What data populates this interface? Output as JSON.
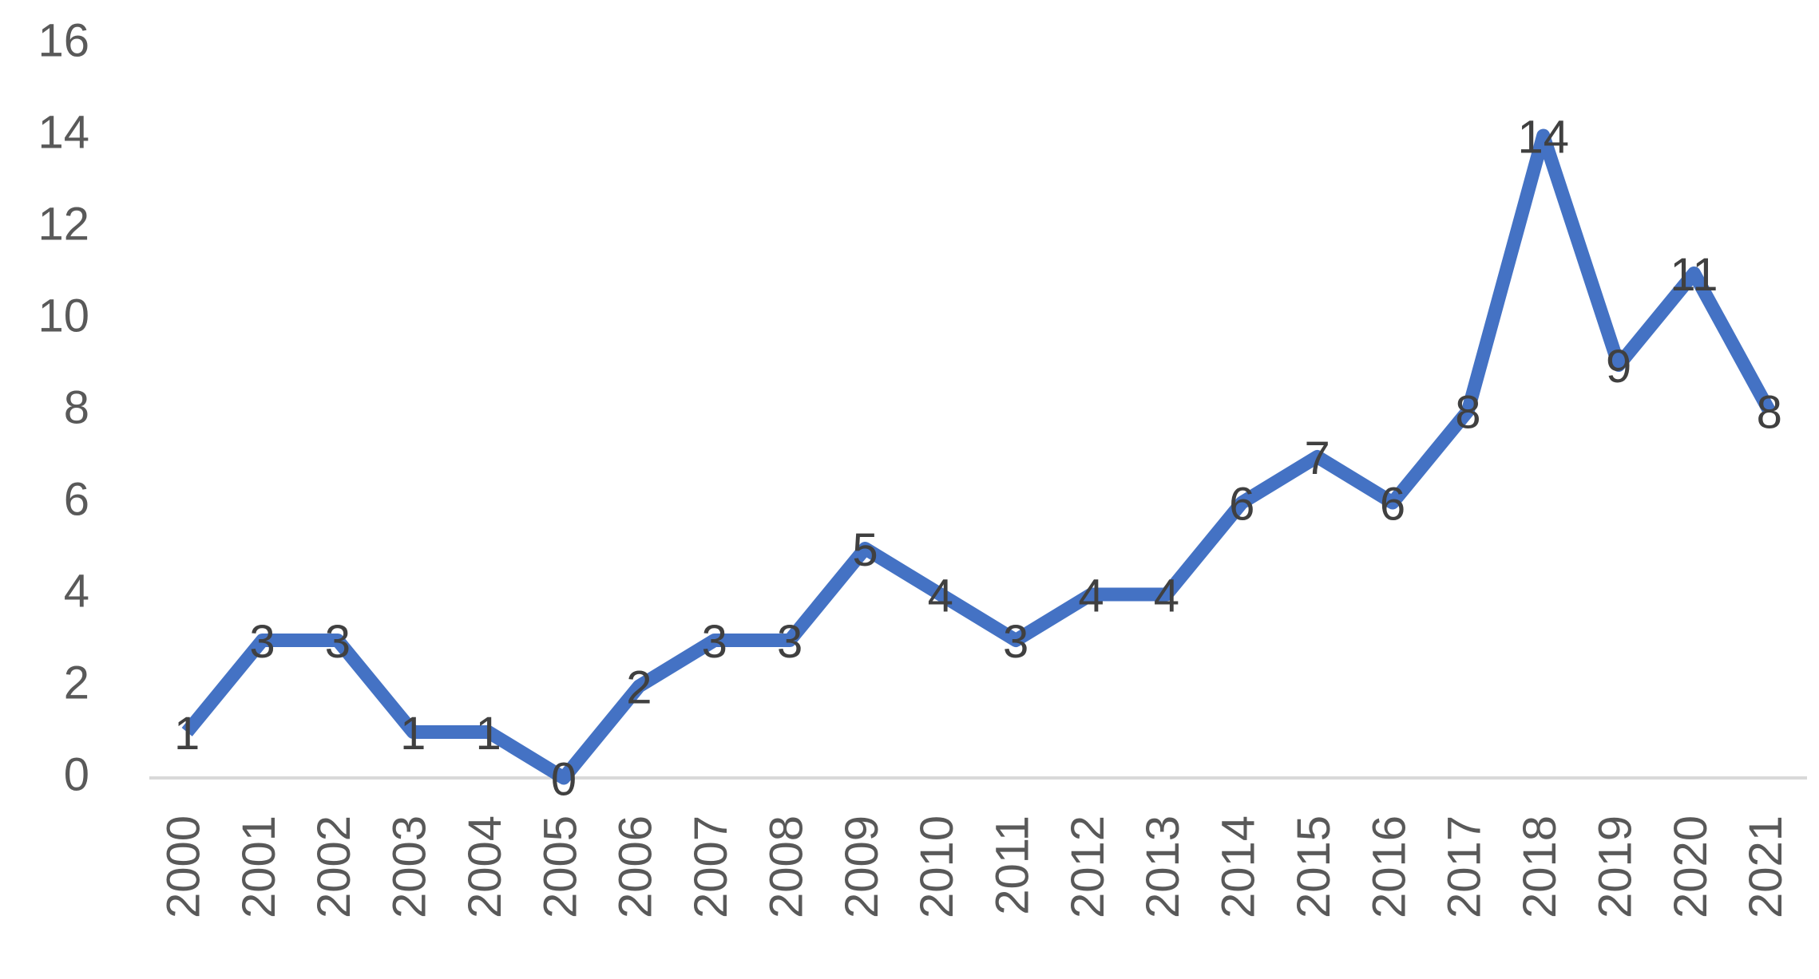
{
  "chart_data": {
    "type": "line",
    "categories": [
      "2000",
      "2001",
      "2002",
      "2003",
      "2004",
      "2005",
      "2006",
      "2007",
      "2008",
      "2009",
      "2010",
      "2011",
      "2012",
      "2013",
      "2014",
      "2015",
      "2016",
      "2017",
      "2018",
      "2019",
      "2020",
      "2021"
    ],
    "series": [
      {
        "color": "#4472c4",
        "values": [
          1,
          3,
          3,
          1,
          1,
          0,
          2,
          3,
          3,
          5,
          4,
          3,
          4,
          4,
          6,
          7,
          6,
          8,
          14,
          9,
          11,
          8
        ]
      }
    ],
    "ylim": [
      0,
      16
    ],
    "yticks": [
      0,
      2,
      4,
      6,
      8,
      10,
      12,
      14,
      16
    ],
    "grid": false,
    "data_labels": true
  }
}
